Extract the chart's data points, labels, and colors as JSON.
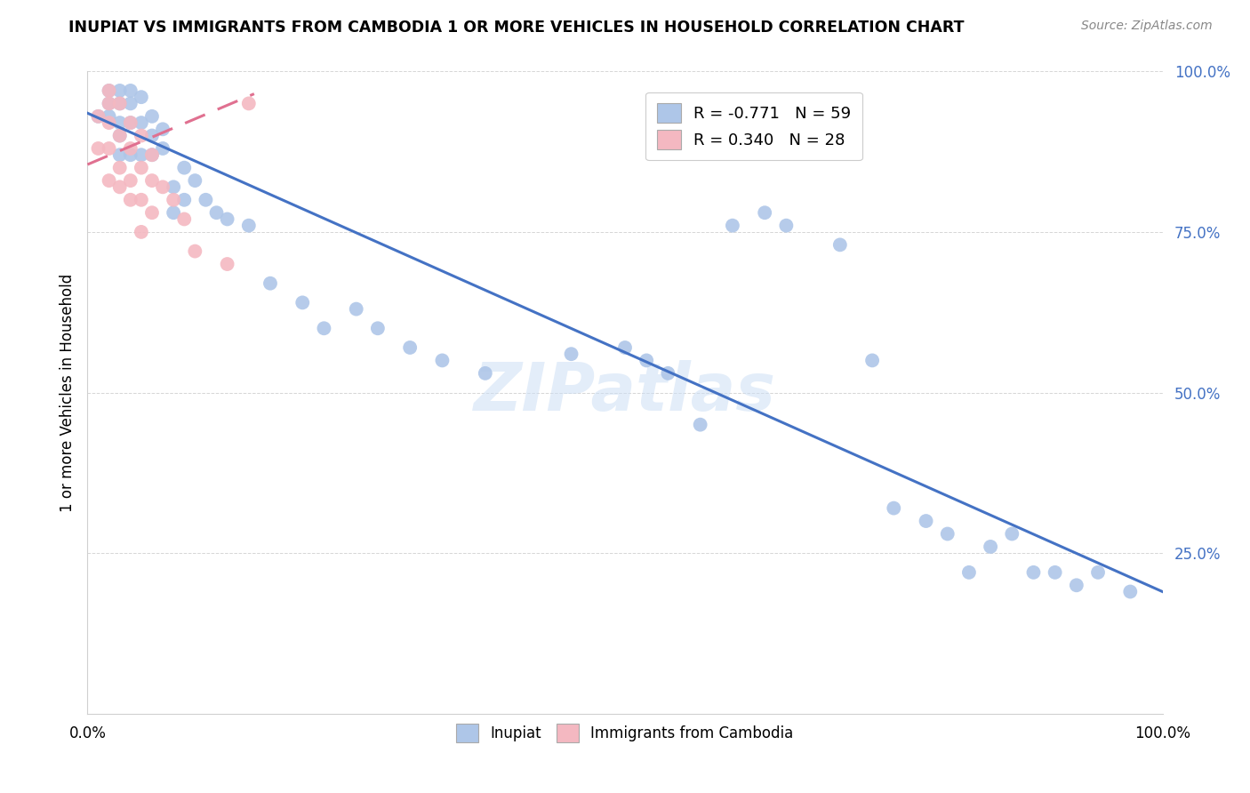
{
  "title": "INUPIAT VS IMMIGRANTS FROM CAMBODIA 1 OR MORE VEHICLES IN HOUSEHOLD CORRELATION CHART",
  "source": "Source: ZipAtlas.com",
  "ylabel": "1 or more Vehicles in Household",
  "xlim": [
    0.0,
    1.0
  ],
  "ylim": [
    0.0,
    1.0
  ],
  "inupiat_color": "#aec6e8",
  "cambodia_color": "#f4b8c1",
  "inupiat_line_color": "#4472c4",
  "cambodia_line_color": "#e07090",
  "background_color": "#ffffff",
  "watermark": "ZIPatlas",
  "legend_r_texts": [
    "R = -0.771   N = 59",
    "R = 0.340   N = 28"
  ],
  "legend_labels": [
    "Inupiat",
    "Immigrants from Cambodia"
  ],
  "inupiat_x": [
    0.01,
    0.02,
    0.02,
    0.02,
    0.03,
    0.03,
    0.03,
    0.03,
    0.03,
    0.04,
    0.04,
    0.04,
    0.04,
    0.05,
    0.05,
    0.05,
    0.06,
    0.06,
    0.06,
    0.07,
    0.07,
    0.08,
    0.08,
    0.09,
    0.09,
    0.1,
    0.11,
    0.12,
    0.13,
    0.15,
    0.17,
    0.2,
    0.22,
    0.25,
    0.27,
    0.3,
    0.33,
    0.37,
    0.45,
    0.5,
    0.52,
    0.54,
    0.57,
    0.6,
    0.63,
    0.65,
    0.7,
    0.73,
    0.75,
    0.78,
    0.8,
    0.82,
    0.84,
    0.86,
    0.88,
    0.9,
    0.92,
    0.94,
    0.97
  ],
  "inupiat_y": [
    0.93,
    0.97,
    0.95,
    0.93,
    0.97,
    0.95,
    0.92,
    0.9,
    0.87,
    0.97,
    0.95,
    0.92,
    0.87,
    0.96,
    0.92,
    0.87,
    0.93,
    0.9,
    0.87,
    0.91,
    0.88,
    0.82,
    0.78,
    0.85,
    0.8,
    0.83,
    0.8,
    0.78,
    0.77,
    0.76,
    0.67,
    0.64,
    0.6,
    0.63,
    0.6,
    0.57,
    0.55,
    0.53,
    0.56,
    0.57,
    0.55,
    0.53,
    0.45,
    0.76,
    0.78,
    0.76,
    0.73,
    0.55,
    0.32,
    0.3,
    0.28,
    0.22,
    0.26,
    0.28,
    0.22,
    0.22,
    0.2,
    0.22,
    0.19
  ],
  "cambodia_x": [
    0.01,
    0.01,
    0.02,
    0.02,
    0.02,
    0.02,
    0.02,
    0.03,
    0.03,
    0.03,
    0.03,
    0.04,
    0.04,
    0.04,
    0.04,
    0.05,
    0.05,
    0.05,
    0.05,
    0.06,
    0.06,
    0.06,
    0.07,
    0.08,
    0.09,
    0.1,
    0.13,
    0.15
  ],
  "cambodia_y": [
    0.93,
    0.88,
    0.97,
    0.95,
    0.92,
    0.88,
    0.83,
    0.95,
    0.9,
    0.85,
    0.82,
    0.92,
    0.88,
    0.83,
    0.8,
    0.9,
    0.85,
    0.8,
    0.75,
    0.87,
    0.83,
    0.78,
    0.82,
    0.8,
    0.77,
    0.72,
    0.7,
    0.95
  ],
  "inupiat_trendline_x": [
    0.0,
    1.0
  ],
  "inupiat_trendline_y": [
    0.935,
    0.19
  ],
  "cambodia_trendline_x": [
    0.0,
    0.155
  ],
  "cambodia_trendline_y": [
    0.855,
    0.965
  ]
}
